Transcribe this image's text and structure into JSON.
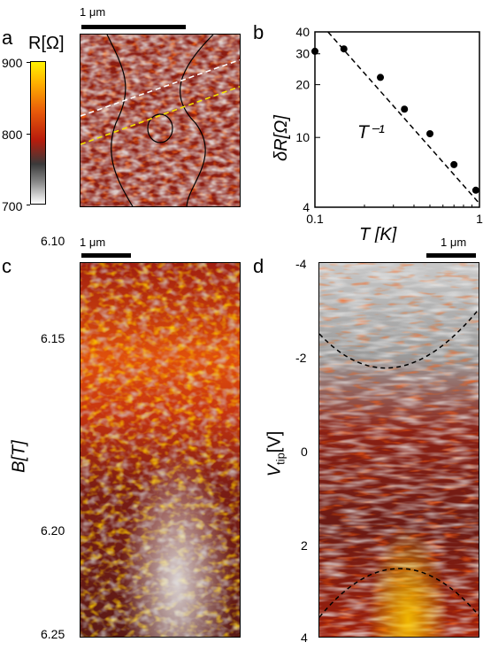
{
  "panels": {
    "a": {
      "letter": "a",
      "scalebar": "1 μm",
      "colorbar": {
        "title": "R[Ω]",
        "ticks": [
          "900",
          "800",
          "700"
        ],
        "range": [
          700,
          900
        ]
      }
    },
    "b": {
      "letter": "b",
      "annotation": "T⁻¹",
      "xlabel": "T [K]",
      "ylabel": "δR[Ω]"
    },
    "c": {
      "letter": "c",
      "scalebar": "1 μm",
      "ylabel": "B[T]",
      "ticks": [
        "6.10",
        "6.15",
        "6.20",
        "6.25"
      ]
    },
    "d": {
      "letter": "d",
      "scalebar": "1 μm",
      "ylabel": "V_tip [V]",
      "ylabel_main": "V",
      "ylabel_sub": "tip",
      "ylabel_unit": "[V]",
      "ticks": [
        "-4",
        "-2",
        "0",
        "2",
        "4"
      ]
    }
  },
  "chart_data": {
    "type": "scatter",
    "xscale": "log",
    "yscale": "log",
    "x_ticks": [
      "0.1",
      "1"
    ],
    "y_ticks": [
      "40",
      "30",
      "20",
      "10",
      "4"
    ],
    "xlim": [
      0.1,
      1.0
    ],
    "ylim": [
      4,
      40
    ],
    "series": [
      {
        "x": [
          0.1,
          0.15,
          0.25,
          0.35,
          0.5,
          0.7,
          0.95
        ],
        "y": [
          31,
          32,
          22,
          14.5,
          10.5,
          7,
          5
        ]
      }
    ],
    "fit_line": {
      "label": "T⁻¹",
      "style": "dashed",
      "x": [
        0.12,
        1.0
      ],
      "y": [
        40,
        4.2
      ]
    }
  }
}
